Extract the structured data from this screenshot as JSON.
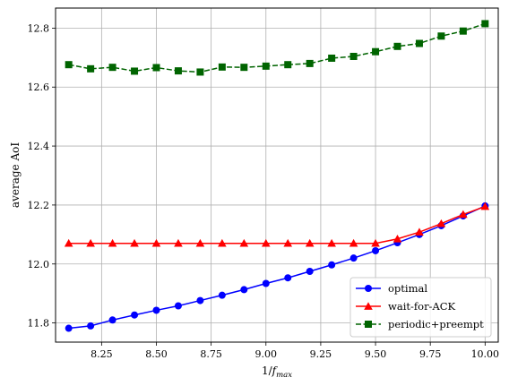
{
  "chart_data": {
    "type": "line",
    "xlabel_base": "1/",
    "xlabel_var": "f",
    "xlabel_sub": "max",
    "ylabel": "average AoI",
    "xlim": [
      8.04,
      10.06
    ],
    "ylim": [
      11.735,
      12.868
    ],
    "xticks": [
      8.25,
      8.5,
      8.75,
      9.0,
      9.25,
      9.5,
      9.75,
      10.0
    ],
    "xtick_labels": [
      "8.25",
      "8.50",
      "8.75",
      "9.00",
      "9.25",
      "9.50",
      "9.75",
      "10.00"
    ],
    "yticks": [
      11.8,
      12.0,
      12.2,
      12.4,
      12.6,
      12.8
    ],
    "ytick_labels": [
      "11.8",
      "12.0",
      "12.2",
      "12.4",
      "12.6",
      "12.8"
    ],
    "grid": true,
    "legend_position": "lower-right",
    "x": [
      8.1,
      8.2,
      8.3,
      8.4,
      8.5,
      8.6,
      8.7,
      8.8,
      8.9,
      9.0,
      9.1,
      9.2,
      9.3,
      9.4,
      9.5,
      9.6,
      9.7,
      9.8,
      9.9,
      10.0
    ],
    "series": [
      {
        "name": "optimal",
        "color": "#0000ff",
        "dash": "solid",
        "marker": "circle",
        "values": [
          11.782,
          11.79,
          11.81,
          11.827,
          11.843,
          11.858,
          11.876,
          11.894,
          11.913,
          11.934,
          11.953,
          11.975,
          11.997,
          12.02,
          12.045,
          12.072,
          12.1,
          12.13,
          12.163,
          12.197
        ]
      },
      {
        "name": "wait-for-ACK",
        "color": "#ff0000",
        "dash": "solid",
        "marker": "triangle",
        "values": [
          12.07,
          12.07,
          12.07,
          12.07,
          12.07,
          12.07,
          12.07,
          12.07,
          12.07,
          12.07,
          12.07,
          12.07,
          12.07,
          12.07,
          12.07,
          12.085,
          12.108,
          12.137,
          12.168,
          12.195
        ]
      },
      {
        "name": "periodic+preempt",
        "color": "#006400",
        "dash": "dashed",
        "marker": "square",
        "values": [
          12.676,
          12.662,
          12.667,
          12.654,
          12.666,
          12.655,
          12.651,
          12.668,
          12.667,
          12.671,
          12.676,
          12.68,
          12.698,
          12.704,
          12.72,
          12.738,
          12.748,
          12.773,
          12.79,
          12.815
        ]
      }
    ]
  }
}
